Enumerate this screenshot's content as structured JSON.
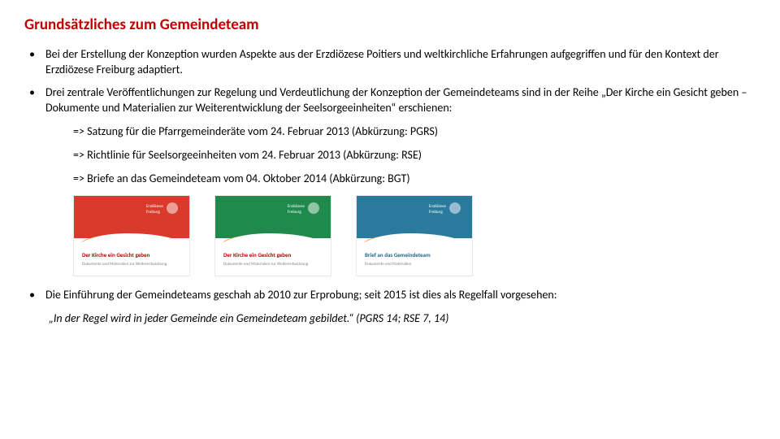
{
  "title": "Grundsätzliches zum Gemeindeteam",
  "title_color": "#c00000",
  "bullets": {
    "b1": "Bei der Erstellung der Konzeption wurden Aspekte aus der Erzdiözese Poitiers und weltkirchliche Erfahrungen aufgegriffen und für den Kontext der Erzdiözese Freiburg adaptiert.",
    "b2": "Drei zentrale Veröffentlichungen zur Regelung und Verdeutlichung der Konzeption der Gemeindeteams sind in der Reihe „Der Kirche ein Gesicht geben – Dokumente und Materialien zur Weiterentwicklung der Seelsorgeeinheiten“ erschienen:",
    "b3": "Die Einführung der Gemeindeteams geschah ab 2010 zur Erprobung; seit 2015 ist dies als Regelfall vorgesehen:"
  },
  "subitems": {
    "s1": "=> Satzung für die Pfarrgemeinderäte vom 24. Februar 2013 (Abkürzung: PGRS)",
    "s2": "=> Richtlinie für Seelsorgeeinheiten vom 24. Februar 2013 (Abkürzung: RSE)",
    "s3": "=> Briefe an das Gemeindeteam vom 04. Oktober 2014 (Abkürzung: BGT)"
  },
  "quote": "„In der Regel wird in jeder Gemeinde ein Gemeindeteam gebildet.“ (PGRS 14; RSE 7, 14)",
  "thumbs": [
    {
      "bg": "#d93a2b",
      "splash": "#f08a1d",
      "line_color": "#c00000",
      "line1": "Der Kirche ein Gesicht geben",
      "line2": "Dokumente und Materialien zur Weiterentwicklung"
    },
    {
      "bg": "#1f8a4c",
      "splash": "#f08a1d",
      "line_color": "#c00000",
      "line1": "Der Kirche ein Gesicht geben",
      "line2": "Dokumente und Materialien zur Weiterentwicklung"
    },
    {
      "bg": "#2a7a9e",
      "splash": "#f08a1d",
      "line_color": "#1f6a8a",
      "line1": "Brief an das Gemeindeteam",
      "line2": "Dokumente und Materialien"
    }
  ]
}
